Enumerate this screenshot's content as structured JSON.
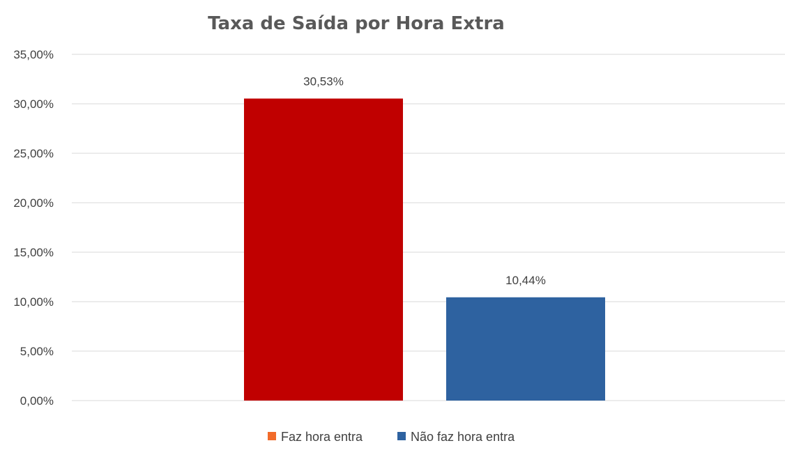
{
  "chart_data": {
    "type": "bar",
    "title": "Taxa de Saída por Hora Extra",
    "xlabel": "",
    "ylabel": "",
    "ylim": [
      0,
      35
    ],
    "y_ticks": [
      0,
      5,
      10,
      15,
      20,
      25,
      30,
      35
    ],
    "y_tick_labels": [
      "0,00%",
      "5,00%",
      "10,00%",
      "15,00%",
      "20,00%",
      "25,00%",
      "30,00%",
      "35,00%"
    ],
    "grid": true,
    "legend_position": "bottom",
    "series": [
      {
        "name": "Faz hora entra",
        "value": 30.53,
        "label": "30,53%",
        "bar_color": "#c00000",
        "legend_color": "#f26b2a"
      },
      {
        "name": "Não faz hora entra",
        "value": 10.44,
        "label": "10,44%",
        "bar_color": "#2e62a0",
        "legend_color": "#2e62a0"
      }
    ]
  }
}
